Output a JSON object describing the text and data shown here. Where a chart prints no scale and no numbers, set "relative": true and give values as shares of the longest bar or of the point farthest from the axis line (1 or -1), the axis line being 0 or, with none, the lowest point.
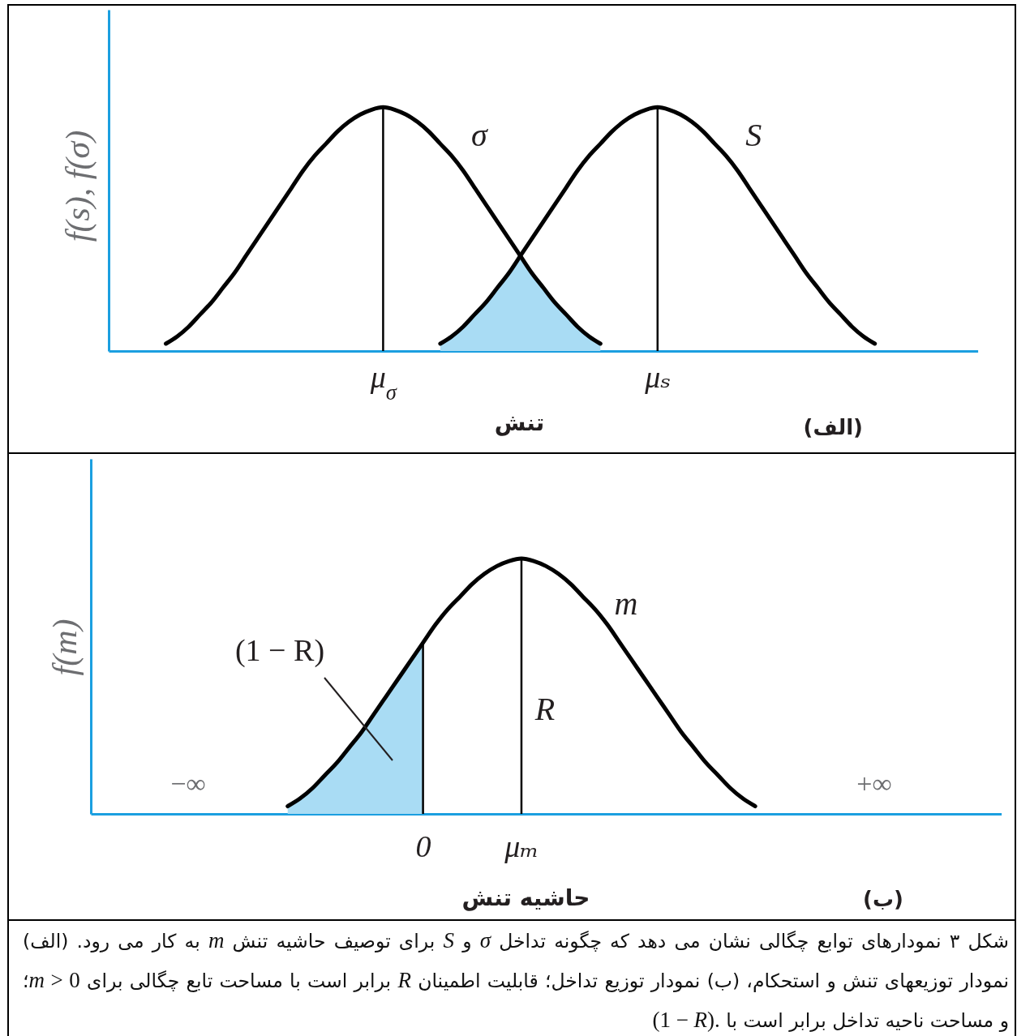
{
  "chart_data": [
    {
      "type": "line",
      "title": "(الف)",
      "xlabel": "تنش",
      "ylabel": "f(s), f(σ)",
      "relative": true,
      "tick_labels": "x",
      "categories": [
        null,
        null,
        null,
        null,
        null,
        null,
        null,
        null,
        null,
        null,
        null,
        null,
        null,
        null,
        null,
        null,
        null,
        null,
        null,
        null,
        null,
        null,
        null,
        null,
        "μ$_{σ}$",
        null,
        null,
        null,
        null,
        null,
        null,
        null,
        null,
        null,
        null,
        null,
        null,
        null,
        null,
        null,
        null,
        null,
        null,
        null,
        null,
        null,
        null,
        null,
        "μₛ",
        null,
        null,
        null,
        null,
        null,
        null,
        null,
        null,
        null,
        null,
        null,
        null,
        null,
        null,
        null,
        null,
        null,
        null,
        null,
        null,
        null,
        null,
        null,
        null,
        null,
        null,
        null,
        null
      ],
      "series": [
        {
          "name": "σ",
          "color": "#000000",
          "values": [
            null,
            null,
            null,
            null,
            null,
            0.03,
            0.06,
            0.1,
            0.15,
            0.2,
            0.26,
            0.32,
            0.39,
            0.46,
            0.53,
            0.6,
            0.67,
            0.74,
            0.8,
            0.85,
            0.9,
            0.94,
            0.97,
            0.99,
            1,
            0.99,
            0.97,
            0.94,
            0.9,
            0.85,
            0.8,
            0.74,
            0.67,
            0.6,
            0.53,
            0.46,
            0.39,
            0.32,
            0.26,
            0.2,
            0.15,
            0.1,
            0.06,
            0.03,
            null,
            null,
            null,
            null,
            null,
            null,
            null,
            null,
            null,
            null,
            null,
            null,
            null,
            null,
            null,
            null,
            null,
            null,
            null,
            null,
            null,
            null,
            null,
            null,
            null,
            null,
            null,
            null,
            null,
            null,
            null,
            null,
            null
          ]
        },
        {
          "name": "S",
          "color": "#000000",
          "values": [
            null,
            null,
            null,
            null,
            null,
            null,
            null,
            null,
            null,
            null,
            null,
            null,
            null,
            null,
            null,
            null,
            null,
            null,
            null,
            null,
            null,
            null,
            null,
            null,
            null,
            null,
            null,
            null,
            null,
            0.03,
            0.06,
            0.1,
            0.15,
            0.2,
            0.26,
            0.32,
            0.39,
            0.46,
            0.53,
            0.6,
            0.67,
            0.74,
            0.8,
            0.85,
            0.9,
            0.94,
            0.97,
            0.99,
            1,
            0.99,
            0.97,
            0.94,
            0.9,
            0.85,
            0.8,
            0.74,
            0.67,
            0.6,
            0.53,
            0.46,
            0.39,
            0.32,
            0.26,
            0.2,
            0.15,
            0.1,
            0.06,
            0.03,
            null,
            null,
            null,
            null,
            null,
            null,
            null,
            null,
            null
          ]
        },
        {
          "type": "area",
          "color": "#a9dcf4",
          "values": [
            null,
            null,
            null,
            null,
            null,
            null,
            null,
            null,
            null,
            null,
            null,
            null,
            null,
            null,
            null,
            null,
            null,
            null,
            null,
            null,
            null,
            null,
            null,
            null,
            null,
            null,
            null,
            null,
            null,
            0.03,
            0.06,
            0.1,
            0.15,
            0.2,
            0.26,
            0.32,
            0.39,
            0.32,
            0.26,
            0.2,
            0.15,
            0.1,
            0.06,
            0.03,
            null,
            null,
            null,
            null,
            null,
            null,
            null,
            null,
            null,
            null,
            null,
            null,
            null,
            null,
            null,
            null,
            null,
            null,
            null,
            null,
            null,
            null,
            null,
            null,
            null,
            null,
            null,
            null,
            null,
            null,
            null,
            null,
            null
          ]
        }
      ],
      "ref_lines": [
        {
          "axis": "x",
          "value": "μ$_{σ}$",
          "color": "#000000"
        },
        {
          "axis": "x",
          "value": "μₛ",
          "color": "#000000"
        }
      ]
    },
    {
      "type": "line",
      "title": "(ب)",
      "xlabel": "حاشیه تنش",
      "ylabel": "f(m)",
      "relative": true,
      "tick_labels": "x",
      "categories": [
        null,
        null,
        null,
        null,
        null,
        null,
        null,
        null,
        null,
        null,
        null,
        null,
        null,
        null,
        null,
        null,
        null,
        null,
        null,
        null,
        null,
        null,
        null,
        null,
        null,
        null,
        null,
        "0",
        null,
        null,
        null,
        null,
        null,
        null,
        null,
        "μₘ",
        null,
        null,
        null,
        null,
        null,
        null,
        null,
        null,
        null,
        null,
        null,
        null,
        null,
        null,
        null,
        null,
        null,
        null,
        null,
        null,
        null,
        null,
        null,
        null,
        null,
        null,
        null,
        null,
        null,
        null,
        null,
        null,
        null,
        null,
        null,
        null,
        null,
        null,
        null
      ],
      "series": [
        {
          "name": "m",
          "color": "#000000",
          "values": [
            null,
            null,
            null,
            null,
            null,
            null,
            null,
            null,
            null,
            null,
            null,
            null,
            null,
            null,
            null,
            null,
            0.03,
            0.06,
            0.1,
            0.15,
            0.2,
            0.26,
            0.32,
            0.39,
            0.46,
            0.53,
            0.6,
            0.67,
            0.74,
            0.8,
            0.85,
            0.9,
            0.94,
            0.97,
            0.99,
            1,
            0.99,
            0.97,
            0.94,
            0.9,
            0.85,
            0.8,
            0.74,
            0.67,
            0.6,
            0.53,
            0.46,
            0.39,
            0.32,
            0.26,
            0.2,
            0.15,
            0.1,
            0.06,
            0.03,
            null,
            null,
            null,
            null,
            null,
            null,
            null,
            null,
            null,
            null,
            null,
            null,
            null,
            null,
            null,
            null,
            null,
            null,
            null,
            null
          ]
        },
        {
          "type": "area",
          "color": "#a9dcf4",
          "values": [
            null,
            null,
            null,
            null,
            null,
            null,
            null,
            null,
            null,
            null,
            null,
            null,
            null,
            null,
            null,
            null,
            0.03,
            0.06,
            0.1,
            0.15,
            0.2,
            0.26,
            0.32,
            0.39,
            0.46,
            0.53,
            0.6,
            0.67,
            null,
            null,
            null,
            null,
            null,
            null,
            null,
            null,
            null,
            null,
            null,
            null,
            null,
            null,
            null,
            null,
            null,
            null,
            null,
            null,
            null,
            null,
            null,
            null,
            null,
            null,
            null,
            null,
            null,
            null,
            null,
            null,
            null,
            null,
            null,
            null,
            null,
            null,
            null,
            null,
            null,
            null,
            null,
            null,
            null,
            null,
            null
          ]
        }
      ],
      "ref_lines": [
        {
          "axis": "x",
          "value": "0",
          "color": "#000000"
        },
        {
          "axis": "x",
          "value": "μₘ",
          "color": "#000000"
        }
      ],
      "annotations": [
        "(1 − R)",
        "R",
        "−∞",
        "+∞"
      ]
    },
    {
      "type": "other",
      "annotations": [
        "شکل ۳ نمودارهای توابع چگالی نشان می دهد که چگونه تداخل σ و S برای توصیف حاشیه تنش m به کار می رود. (الف) نمودار توزیعهای تنش و استحکام، (ب) نمودار توزیع تداخل؛ قابلیت اطمینان R برابر است با مساحت تابع چگالی برای 0 < m؛ و مساحت ناحیه تداخل برابر است با (1 − R)."
      ]
    }
  ]
}
